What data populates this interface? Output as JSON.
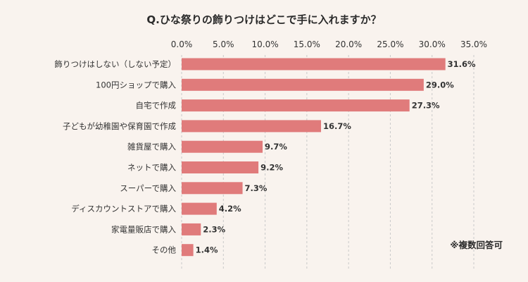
{
  "chart_data": {
    "type": "bar",
    "orientation": "horizontal",
    "title": "Q.ひな祭りの飾りつけはどこで手に入れますか？",
    "categories": [
      "飾りつけはしない（しない予定）",
      "100円ショップで購入",
      "自宅で作成",
      "子どもが幼稚園や保育園で作成",
      "雑貨屋で購入",
      "ネットで購入",
      "スーパーで購入",
      "ディスカウントストアで購入",
      "家電量販店で購入",
      "その他"
    ],
    "values": [
      31.6,
      29.0,
      27.3,
      16.7,
      9.7,
      9.2,
      7.3,
      4.2,
      2.3,
      1.4
    ],
    "value_labels": [
      "31.6%",
      "29.0%",
      "27.3%",
      "16.7%",
      "9.7%",
      "9.2%",
      "7.3%",
      "4.2%",
      "2.3%",
      "1.4%"
    ],
    "xlim": [
      0,
      35
    ],
    "ticks": [
      0,
      5,
      10,
      15,
      20,
      25,
      30,
      35
    ],
    "tick_labels": [
      "0.0%",
      "5.0%",
      "10.0%",
      "15.0%",
      "20.0%",
      "25.0%",
      "30.0%",
      "35.0%"
    ],
    "axis_position": "top",
    "grid": true,
    "grid_style": "dashed",
    "bar_color": "#e07b7b",
    "grid_color": "#c9c9c9",
    "background_color": "#f9f3ee",
    "note": "※複数回答可"
  }
}
